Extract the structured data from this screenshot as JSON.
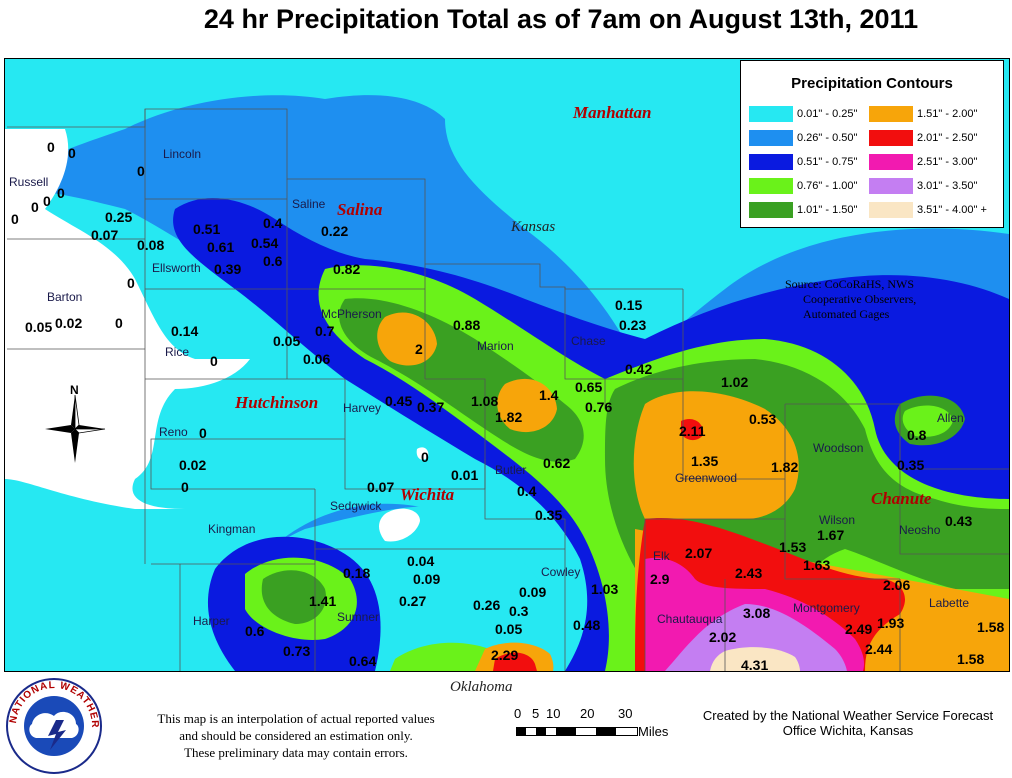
{
  "title": "24 hr Precipitation Total as of 7am on August 13th, 2011",
  "legend": {
    "title": "Precipitation Contours",
    "items": [
      {
        "label": "0.01\" - 0.25\"",
        "color": "#26e8f2"
      },
      {
        "label": "0.26\" - 0.50\"",
        "color": "#1e8ff0"
      },
      {
        "label": "0.51\" - 0.75\"",
        "color": "#0a1ae0"
      },
      {
        "label": "0.76\" - 1.00\"",
        "color": "#6af21a"
      },
      {
        "label": "1.01\" - 1.50\"",
        "color": "#3aa022"
      },
      {
        "label": "1.51\" - 2.00\"",
        "color": "#f7a50a"
      },
      {
        "label": "2.01\" - 2.50\"",
        "color": "#f20e0e"
      },
      {
        "label": "2.51\" - 3.00\"",
        "color": "#f21ab0"
      },
      {
        "label": "3.01\" - 3.50\"",
        "color": "#c47ef2"
      },
      {
        "label": "3.51\" - 4.00\" +",
        "color": "#fae6c4"
      }
    ]
  },
  "source": [
    "Source: CoCoRaHS, NWS",
    "Cooperative Observers,",
    "Automated Gages"
  ],
  "cities": [
    "Manhattan",
    "Salina",
    "Hutchinson",
    "Wichita",
    "Chanute"
  ],
  "states": [
    "Kansas",
    "Oklahoma"
  ],
  "counties": [
    "Russell",
    "Lincoln",
    "Saline",
    "Ellsworth",
    "Barton",
    "Rice",
    "McPherson",
    "Marion",
    "Chase",
    "Harvey",
    "Reno",
    "Butler",
    "Greenwood",
    "Woodson",
    "Allen",
    "Neosho",
    "Wilson",
    "Sedgwick",
    "Kingman",
    "Harper",
    "Sumner",
    "Cowley",
    "Elk",
    "Chautauqua",
    "Montgomery",
    "Labette"
  ],
  "values": [
    "0",
    "0",
    "0",
    "0",
    "0",
    "0",
    "0",
    "0.25",
    "0.07",
    "0.08",
    "0.51",
    "0.61",
    "0.39",
    "0.4",
    "0.54",
    "0.6",
    "0.22",
    "0.82",
    "0",
    "0.05",
    "0.02",
    "0",
    "0.14",
    "0",
    "0.05",
    "0.7",
    "0.06",
    "2",
    "0.88",
    "0.15",
    "0.23",
    "0.42",
    "0.65",
    "0.76",
    "1.02",
    "1.08",
    "1.4",
    "1.82",
    "0.45",
    "0.37",
    "0",
    "0.02",
    "0",
    "0",
    "0.01",
    "0.62",
    "0.4",
    "0.35",
    "0.07",
    "2.11",
    "1.35",
    "1.82",
    "0.53",
    "0.8",
    "0.35",
    "0.43",
    "1.67",
    "1.53",
    "1.63",
    "2.07",
    "2.43",
    "2.9",
    "3.08",
    "2.02",
    "2.49",
    "2.44",
    "1.93",
    "2.06",
    "1.58",
    "1.58",
    "4.31",
    "0.04",
    "0.09",
    "0.18",
    "0.27",
    "0.26",
    "0.3",
    "0.09",
    "0.05",
    "1.03",
    "0.48",
    "1.41",
    "0.6",
    "0.73",
    "0.64",
    "2.29"
  ],
  "footer_note": [
    "This map is an interpolation of actual reported values",
    "and should be considered an estimation only.",
    "These preliminary data may contain errors."
  ],
  "credit": [
    "Created by the National Weather Service Forecast",
    "Office Wichita, Kansas"
  ],
  "scale": {
    "ticks": [
      "0",
      "5",
      "10",
      "20",
      "30"
    ],
    "unit": "Miles"
  },
  "compass": "N",
  "logo_text": "NATIONAL WEATHER SERVICE"
}
